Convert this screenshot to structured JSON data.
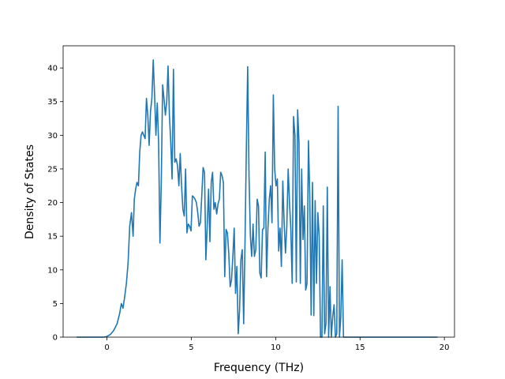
{
  "chart_data": {
    "type": "line",
    "title": "",
    "xlabel": "Frequency (THz)",
    "ylabel": "Density of States",
    "xlim": [
      -2.6,
      20.6
    ],
    "ylim": [
      0,
      43.3
    ],
    "xticks": [
      0,
      5,
      10,
      15,
      20
    ],
    "yticks": [
      0,
      5,
      10,
      15,
      20,
      25,
      30,
      35,
      40
    ],
    "grid": false,
    "line_color": "#1f77b4",
    "series": [
      {
        "name": "",
        "points": [
          [
            -1.8,
            0
          ],
          [
            -0.2,
            0
          ],
          [
            0.0,
            0.1
          ],
          [
            0.2,
            0.4
          ],
          [
            0.4,
            1.0
          ],
          [
            0.6,
            2.0
          ],
          [
            0.75,
            3.5
          ],
          [
            0.85,
            5.0
          ],
          [
            0.95,
            4.3
          ],
          [
            1.05,
            6.0
          ],
          [
            1.15,
            8.0
          ],
          [
            1.25,
            11.0
          ],
          [
            1.35,
            16.5
          ],
          [
            1.45,
            18.5
          ],
          [
            1.55,
            15.0
          ],
          [
            1.62,
            20.5
          ],
          [
            1.7,
            22.0
          ],
          [
            1.78,
            23.0
          ],
          [
            1.86,
            22.5
          ],
          [
            1.94,
            27.5
          ],
          [
            2.02,
            30.0
          ],
          [
            2.1,
            30.5
          ],
          [
            2.18,
            30.0
          ],
          [
            2.26,
            29.5
          ],
          [
            2.34,
            35.5
          ],
          [
            2.42,
            33.0
          ],
          [
            2.5,
            28.5
          ],
          [
            2.58,
            33.5
          ],
          [
            2.66,
            35.5
          ],
          [
            2.74,
            41.2
          ],
          [
            2.82,
            36.0
          ],
          [
            2.9,
            30.0
          ],
          [
            2.98,
            34.8
          ],
          [
            3.06,
            29.0
          ],
          [
            3.14,
            14.0
          ],
          [
            3.22,
            23.0
          ],
          [
            3.3,
            37.5
          ],
          [
            3.38,
            35.5
          ],
          [
            3.46,
            33.0
          ],
          [
            3.54,
            35.0
          ],
          [
            3.62,
            40.3
          ],
          [
            3.7,
            33.0
          ],
          [
            3.78,
            29.0
          ],
          [
            3.86,
            23.5
          ],
          [
            3.94,
            39.8
          ],
          [
            4.02,
            26.0
          ],
          [
            4.1,
            26.5
          ],
          [
            4.18,
            25.5
          ],
          [
            4.26,
            22.5
          ],
          [
            4.34,
            27.3
          ],
          [
            4.42,
            22.5
          ],
          [
            4.5,
            19.0
          ],
          [
            4.58,
            18.0
          ],
          [
            4.66,
            25.0
          ],
          [
            4.74,
            15.5
          ],
          [
            4.82,
            16.8
          ],
          [
            4.9,
            16.5
          ],
          [
            4.98,
            15.8
          ],
          [
            5.06,
            21.0
          ],
          [
            5.14,
            20.8
          ],
          [
            5.22,
            20.5
          ],
          [
            5.3,
            20.0
          ],
          [
            5.38,
            18.5
          ],
          [
            5.46,
            16.5
          ],
          [
            5.54,
            17.0
          ],
          [
            5.62,
            21.0
          ],
          [
            5.7,
            25.2
          ],
          [
            5.78,
            24.5
          ],
          [
            5.86,
            11.5
          ],
          [
            5.94,
            16.5
          ],
          [
            6.02,
            22.0
          ],
          [
            6.1,
            14.2
          ],
          [
            6.18,
            23.0
          ],
          [
            6.26,
            24.5
          ],
          [
            6.34,
            19.0
          ],
          [
            6.42,
            20.0
          ],
          [
            6.5,
            18.3
          ],
          [
            6.58,
            19.8
          ],
          [
            6.66,
            20.5
          ],
          [
            6.74,
            24.5
          ],
          [
            6.82,
            24.0
          ],
          [
            6.9,
            23.0
          ],
          [
            6.98,
            9.0
          ],
          [
            7.06,
            16.0
          ],
          [
            7.14,
            15.5
          ],
          [
            7.22,
            12.5
          ],
          [
            7.3,
            7.5
          ],
          [
            7.38,
            8.5
          ],
          [
            7.46,
            12.0
          ],
          [
            7.54,
            16.2
          ],
          [
            7.62,
            6.5
          ],
          [
            7.7,
            10.5
          ],
          [
            7.78,
            0.5
          ],
          [
            7.86,
            4.0
          ],
          [
            7.94,
            11.5
          ],
          [
            8.02,
            13.0
          ],
          [
            8.1,
            2.0
          ],
          [
            8.18,
            14.0
          ],
          [
            8.26,
            28.0
          ],
          [
            8.34,
            40.2
          ],
          [
            8.42,
            24.0
          ],
          [
            8.5,
            15.0
          ],
          [
            8.58,
            12.0
          ],
          [
            8.66,
            16.8
          ],
          [
            8.74,
            12.0
          ],
          [
            8.82,
            13.0
          ],
          [
            8.9,
            20.5
          ],
          [
            8.98,
            19.5
          ],
          [
            9.06,
            9.5
          ],
          [
            9.14,
            8.8
          ],
          [
            9.22,
            16.0
          ],
          [
            9.3,
            16.2
          ],
          [
            9.38,
            27.5
          ],
          [
            9.46,
            9.0
          ],
          [
            9.54,
            16.0
          ],
          [
            9.62,
            20.5
          ],
          [
            9.7,
            22.5
          ],
          [
            9.78,
            17.0
          ],
          [
            9.86,
            36.0
          ],
          [
            9.94,
            25.0
          ],
          [
            10.02,
            22.5
          ],
          [
            10.1,
            23.5
          ],
          [
            10.18,
            12.8
          ],
          [
            10.26,
            16.2
          ],
          [
            10.34,
            10.5
          ],
          [
            10.42,
            23.2
          ],
          [
            10.5,
            17.0
          ],
          [
            10.58,
            12.5
          ],
          [
            10.66,
            16.5
          ],
          [
            10.74,
            25.0
          ],
          [
            10.82,
            20.0
          ],
          [
            10.9,
            16.0
          ],
          [
            10.98,
            8.0
          ],
          [
            11.06,
            32.8
          ],
          [
            11.14,
            30.0
          ],
          [
            11.22,
            8.2
          ],
          [
            11.3,
            33.8
          ],
          [
            11.38,
            29.0
          ],
          [
            11.46,
            8.0
          ],
          [
            11.54,
            25.0
          ],
          [
            11.62,
            14.5
          ],
          [
            11.7,
            19.5
          ],
          [
            11.78,
            7.0
          ],
          [
            11.86,
            8.0
          ],
          [
            11.94,
            29.2
          ],
          [
            12.02,
            21.0
          ],
          [
            12.1,
            3.3
          ],
          [
            12.18,
            23.0
          ],
          [
            12.26,
            3.2
          ],
          [
            12.34,
            20.3
          ],
          [
            12.42,
            8.0
          ],
          [
            12.5,
            18.5
          ],
          [
            12.58,
            15.0
          ],
          [
            12.66,
            0.0
          ],
          [
            12.74,
            0.0
          ],
          [
            12.82,
            19.5
          ],
          [
            12.9,
            0.5
          ],
          [
            12.98,
            2.0
          ],
          [
            13.06,
            22.3
          ],
          [
            13.14,
            0.0
          ],
          [
            13.22,
            7.5
          ],
          [
            13.3,
            0.0
          ],
          [
            13.38,
            3.0
          ],
          [
            13.46,
            4.8
          ],
          [
            13.54,
            0.0
          ],
          [
            13.62,
            0.5
          ],
          [
            13.7,
            34.3
          ],
          [
            13.78,
            0.0
          ],
          [
            13.86,
            3.0
          ],
          [
            13.94,
            11.5
          ],
          [
            14.02,
            0.0
          ],
          [
            14.1,
            0.0
          ],
          [
            19.6,
            0.0
          ]
        ]
      }
    ]
  }
}
